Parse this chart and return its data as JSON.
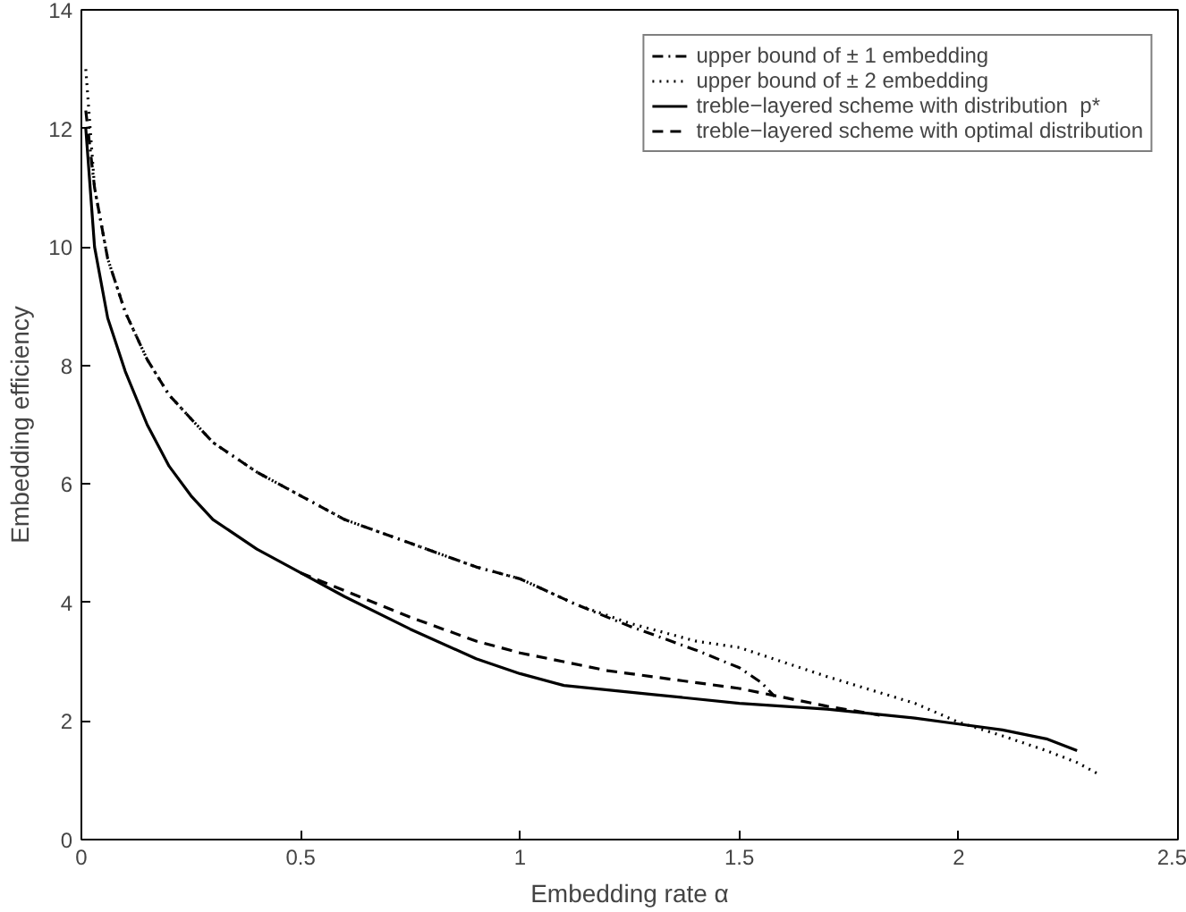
{
  "chart_data": {
    "type": "line",
    "xlabel": "Embedding rate α",
    "ylabel": "Embedding efficiency",
    "xlim": [
      0,
      2.5
    ],
    "ylim": [
      0,
      14
    ],
    "xticks": [
      0,
      0.5,
      1,
      1.5,
      2,
      2.5
    ],
    "yticks": [
      0,
      2,
      4,
      6,
      8,
      10,
      12,
      14
    ],
    "grid": false,
    "legend": "top right",
    "series": [
      {
        "name": "upper bound of ± 1 embedding",
        "color": "#000000",
        "line_style": "dashdot",
        "x": [
          0.01,
          0.03,
          0.06,
          0.1,
          0.15,
          0.2,
          0.3,
          0.4,
          0.5,
          0.6,
          0.75,
          0.9,
          1.0,
          1.13,
          1.25,
          1.4,
          1.5,
          1.55,
          1.58
        ],
        "values": [
          12.3,
          11.0,
          9.8,
          8.9,
          8.1,
          7.5,
          6.7,
          6.2,
          5.8,
          5.4,
          5.0,
          4.6,
          4.4,
          3.96,
          3.6,
          3.2,
          2.9,
          2.65,
          2.42
        ]
      },
      {
        "name": "upper bound of ± 2 embedding",
        "color": "#000000",
        "line_style": "dotted",
        "x": [
          0.01,
          0.03,
          0.06,
          0.1,
          0.15,
          0.2,
          0.3,
          0.4,
          0.5,
          0.6,
          0.75,
          0.9,
          1.0,
          1.13,
          1.25,
          1.4,
          1.5,
          1.7,
          1.9,
          2.0,
          2.1,
          2.2,
          2.27,
          2.32
        ],
        "values": [
          13.0,
          11.0,
          9.8,
          8.9,
          8.1,
          7.5,
          6.7,
          6.2,
          5.8,
          5.4,
          5.0,
          4.6,
          4.4,
          3.96,
          3.65,
          3.35,
          3.24,
          2.75,
          2.3,
          1.98,
          1.75,
          1.5,
          1.3,
          1.1
        ]
      },
      {
        "name": "treble−layered scheme with distribution  p*",
        "color": "#000000",
        "line_style": "solid",
        "x": [
          0.01,
          0.03,
          0.06,
          0.1,
          0.15,
          0.2,
          0.25,
          0.3,
          0.4,
          0.5,
          0.6,
          0.75,
          0.9,
          1.0,
          1.1,
          1.3,
          1.5,
          1.7,
          1.9,
          2.0,
          2.1,
          2.2,
          2.27
        ],
        "values": [
          12.0,
          10.0,
          8.8,
          7.9,
          7.0,
          6.3,
          5.8,
          5.4,
          4.9,
          4.5,
          4.1,
          3.55,
          3.05,
          2.8,
          2.6,
          2.45,
          2.3,
          2.2,
          2.05,
          1.95,
          1.85,
          1.7,
          1.5
        ]
      },
      {
        "name": "treble−layered scheme with optimal distribution",
        "color": "#000000",
        "line_style": "dashed",
        "x": [
          0.5,
          0.55,
          0.6,
          0.75,
          0.9,
          1.0,
          1.2,
          1.4,
          1.5,
          1.6,
          1.7,
          1.82
        ],
        "values": [
          4.5,
          4.35,
          4.2,
          3.75,
          3.35,
          3.15,
          2.85,
          2.65,
          2.55,
          2.4,
          2.25,
          2.1
        ]
      }
    ]
  }
}
